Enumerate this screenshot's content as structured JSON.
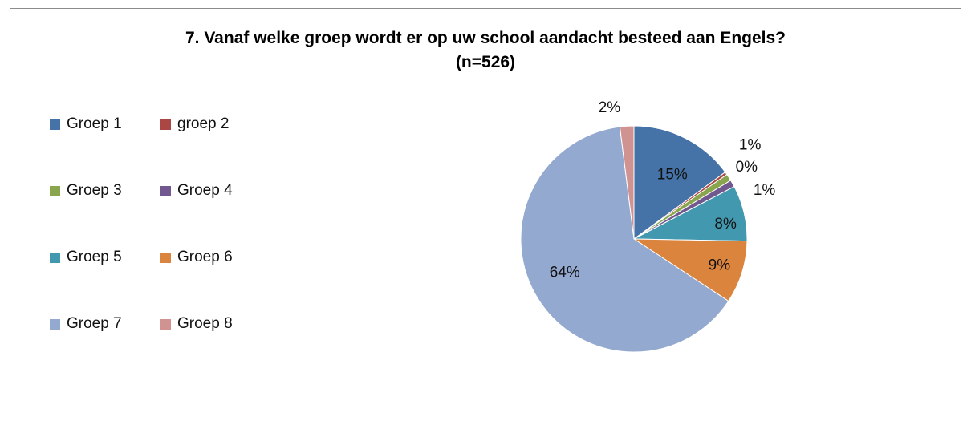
{
  "title": {
    "line1": "7. Vanaf welke groep wordt er op uw school aandacht besteed aan Engels?",
    "line2": "(n=526)"
  },
  "chart_data": {
    "type": "pie",
    "title": "7. Vanaf welke groep wordt er op uw school aandacht besteed aan Engels? (n=526)",
    "legend_position": "left",
    "slices": [
      {
        "name": "Groep 1",
        "value": 15,
        "label": "15%",
        "color": "#4572A7"
      },
      {
        "name": "groep 2",
        "value": 0.4,
        "label": "0%",
        "color": "#AA4643"
      },
      {
        "name": "Groep 3",
        "value": 1,
        "label": "1%",
        "color": "#89A54E"
      },
      {
        "name": "Groep 4",
        "value": 1,
        "label": "1%",
        "color": "#71588F"
      },
      {
        "name": "Groep 5",
        "value": 8,
        "label": "8%",
        "color": "#4198AF"
      },
      {
        "name": "Groep 6",
        "value": 9,
        "label": "9%",
        "color": "#DB843D"
      },
      {
        "name": "Groep 7",
        "value": 64,
        "label": "64%",
        "color": "#93A9CF"
      },
      {
        "name": "Groep 8",
        "value": 2,
        "label": "2%",
        "color": "#D19392"
      }
    ]
  }
}
